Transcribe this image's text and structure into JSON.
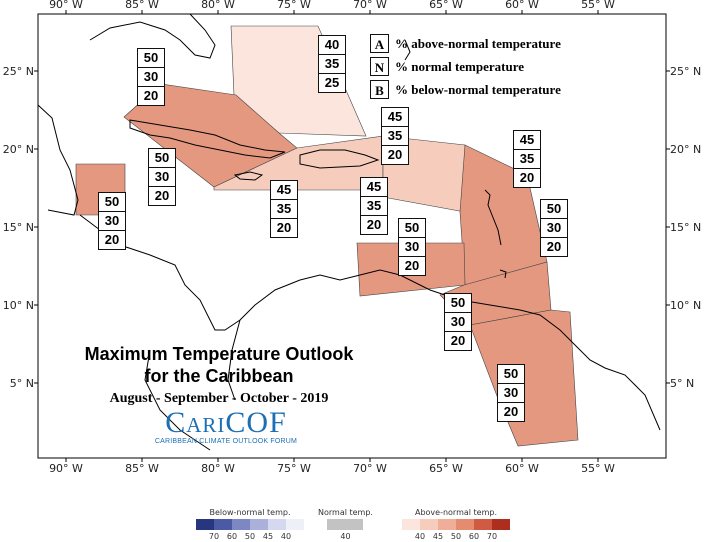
{
  "map": {
    "x_ticks": [
      "90° W",
      "85° W",
      "80° W",
      "75° W",
      "70° W",
      "65° W",
      "60° W",
      "55° W"
    ],
    "y_ticks": [
      "25° N",
      "20° N",
      "15° N",
      "10° N",
      "5° N"
    ]
  },
  "key": [
    {
      "letter": "A",
      "text": "% above-normal temperature"
    },
    {
      "letter": "N",
      "text": "% normal temperature"
    },
    {
      "letter": "B",
      "text": "% below-normal temperature"
    }
  ],
  "regions": [
    {
      "name": "bahamas",
      "above": "40",
      "normal": "35",
      "below": "25",
      "fill": "#fbe5dd"
    },
    {
      "name": "cuba",
      "above": "50",
      "normal": "30",
      "below": "20",
      "fill": "#e59880"
    },
    {
      "name": "western-caribbean",
      "above": "50",
      "normal": "30",
      "below": "20",
      "fill": "#e59880"
    },
    {
      "name": "belize",
      "above": "50",
      "normal": "30",
      "below": "20",
      "fill": "#e59880"
    },
    {
      "name": "jamaica",
      "above": "45",
      "normal": "35",
      "below": "20",
      "fill": "#f6cdbd"
    },
    {
      "name": "hispaniola",
      "above": "45",
      "normal": "35",
      "below": "20",
      "fill": "#f6cdbd"
    },
    {
      "name": "puerto-rico",
      "above": "45",
      "normal": "35",
      "below": "20",
      "fill": "#f6cdbd"
    },
    {
      "name": "northern-leewards",
      "above": "45",
      "normal": "35",
      "below": "20",
      "fill": "#f6cdbd"
    },
    {
      "name": "eastern-caribbean",
      "above": "50",
      "normal": "30",
      "below": "20",
      "fill": "#e59880"
    },
    {
      "name": "abc-islands",
      "above": "50",
      "normal": "30",
      "below": "20",
      "fill": "#e59880"
    },
    {
      "name": "trinidad",
      "above": "50",
      "normal": "30",
      "below": "20",
      "fill": "#e59880"
    },
    {
      "name": "guianas",
      "above": "50",
      "normal": "30",
      "below": "20",
      "fill": "#e59880"
    }
  ],
  "title": {
    "line1": "Maximum Temperature Outlook",
    "line2": "for the Caribbean",
    "period": "August - September - October - 2019"
  },
  "logo": {
    "main": "CariCOF",
    "sub": "CARIBBEAN CLIMATE OUTLOOK FORUM"
  },
  "scales": [
    {
      "name": "below",
      "title": "Below-normal temp.",
      "ticks": [
        "70",
        "60",
        "50",
        "45",
        "40"
      ],
      "colors": [
        "#27367f",
        "#4c5aa6",
        "#7d87c4",
        "#aab0da",
        "#d5d8ee",
        "#eef0f8"
      ]
    },
    {
      "name": "normal",
      "title": "Normal temp.",
      "ticks": [
        "40"
      ],
      "colors": [
        "#c3c3c3",
        "#c3c3c3"
      ]
    },
    {
      "name": "above",
      "title": "Above-normal temp.",
      "ticks": [
        "40",
        "45",
        "50",
        "60",
        "70"
      ],
      "colors": [
        "#fbe5dd",
        "#f6cdbd",
        "#eeae98",
        "#e48b70",
        "#cf5b43",
        "#ad2d1e"
      ]
    }
  ]
}
